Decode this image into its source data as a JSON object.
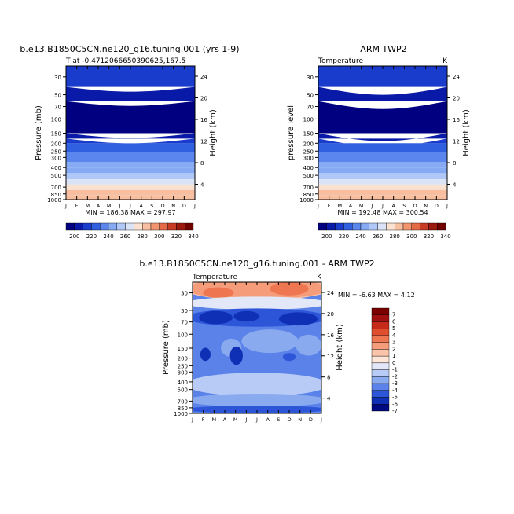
{
  "chart_data": [
    {
      "type": "heatmap",
      "title": "b.e13.B1850C5CN.ne120_g16.tuning.001 (yrs 1-9)",
      "left_label": "T at -0.4712066650390625,167.5",
      "right_label": "",
      "ylabel": "Pressure (mb)",
      "y2label": "Height (km)",
      "x": [
        "J",
        "F",
        "M",
        "A",
        "M",
        "J",
        "J",
        "A",
        "S",
        "O",
        "N",
        "D",
        "J"
      ],
      "y_ticks": [
        "30",
        "50",
        "70",
        "100",
        "150",
        "200",
        "250",
        "300",
        "400",
        "500",
        "700",
        "850",
        "1000"
      ],
      "height_ticks": [
        "24",
        "20",
        "16",
        "12",
        "8",
        "4"
      ],
      "min_max": "MIN = 186.38 MAX = 297.97",
      "colorbar": {
        "labels": [
          "200",
          "220",
          "240",
          "260",
          "280",
          "300",
          "320",
          "340"
        ]
      }
    },
    {
      "type": "heatmap",
      "title": "ARM TWP2",
      "left_label": "Temperature",
      "right_label": "K",
      "ylabel": "pressure level",
      "y2label": "Height (km)",
      "x": [
        "J",
        "F",
        "M",
        "A",
        "M",
        "J",
        "J",
        "A",
        "S",
        "O",
        "N",
        "D",
        "J"
      ],
      "y_ticks": [
        "30",
        "50",
        "70",
        "100",
        "150",
        "200",
        "250",
        "300",
        "400",
        "500",
        "700",
        "850",
        "1000"
      ],
      "height_ticks": [
        "24",
        "20",
        "16",
        "12",
        "8",
        "4"
      ],
      "min_max": "MIN = 192.48 MAX = 300.54",
      "colorbar": {
        "labels": [
          "200",
          "220",
          "240",
          "260",
          "280",
          "300",
          "320",
          "340"
        ]
      }
    },
    {
      "type": "heatmap",
      "title": "b.e13.B1850C5CN.ne120_g16.tuning.001 - ARM TWP2",
      "left_label": "Temperature",
      "right_label": "K",
      "ylabel": "Pressure (mb)",
      "y2label": "Height (km)",
      "x": [
        "J",
        "F",
        "M",
        "A",
        "M",
        "J",
        "J",
        "A",
        "S",
        "O",
        "N",
        "D",
        "J"
      ],
      "y_ticks": [
        "30",
        "50",
        "70",
        "100",
        "150",
        "200",
        "250",
        "300",
        "400",
        "500",
        "700",
        "850",
        "1000"
      ],
      "height_ticks": [
        "24",
        "20",
        "16",
        "12",
        "8",
        "4"
      ],
      "min_max": "MIN = -6.63 MAX = 4.12",
      "colorbar": {
        "labels": [
          "7",
          "6",
          "5",
          "4",
          "3",
          "2",
          "1",
          "0",
          "-1",
          "-2",
          "-3",
          "-4",
          "-5",
          "-6",
          "-7"
        ]
      }
    }
  ],
  "colors": {
    "abs_scale": [
      "#000080",
      "#0a1aa8",
      "#1a3ccc",
      "#3060e0",
      "#5a86ee",
      "#86aaf4",
      "#b0c8f8",
      "#dae4f6",
      "#fbe2d0",
      "#f7bea0",
      "#f2956e",
      "#e56a46",
      "#c83c24",
      "#9a1a0e",
      "#700000"
    ],
    "diff_scale": [
      "#7a0000",
      "#a01010",
      "#c62a1a",
      "#e04e30",
      "#ee7650",
      "#f59c7a",
      "#fac4a8",
      "#fde6d8",
      "#e2e8f8",
      "#b8cbf6",
      "#8aaaf0",
      "#5a82e8",
      "#2d55d8",
      "#0f2fb5",
      "#000a80"
    ]
  }
}
